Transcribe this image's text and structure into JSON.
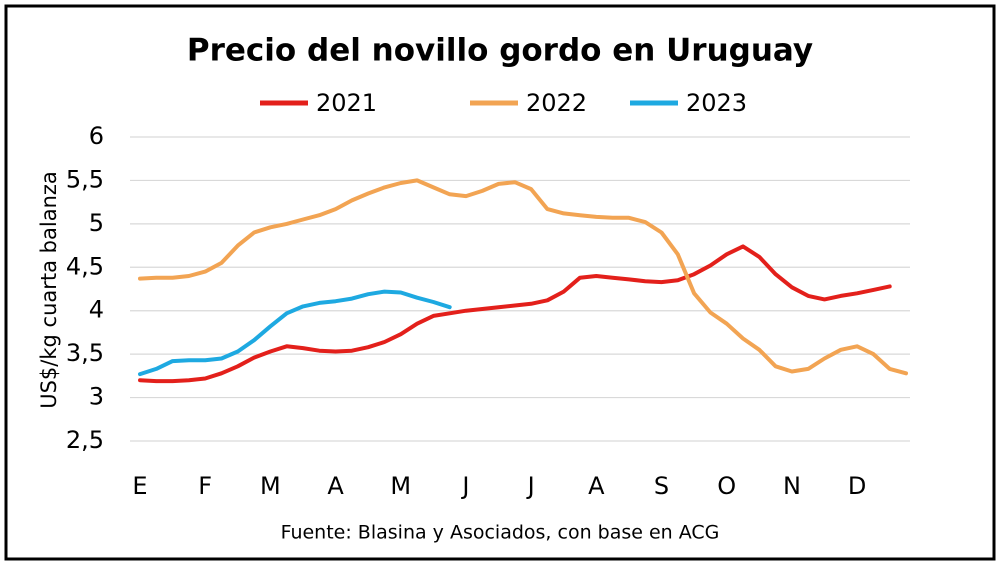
{
  "chart_data": {
    "type": "line",
    "title": "Precio del novillo gordo en Uruguay",
    "y_label": "US$/kg cuarta balanza",
    "source": "Fuente: Blasina y Asociados, con base en ACG",
    "categories": [
      "E",
      null,
      null,
      null,
      "F",
      null,
      null,
      null,
      "M",
      null,
      null,
      null,
      "A",
      null,
      null,
      null,
      "M",
      null,
      null,
      null,
      "J",
      null,
      null,
      null,
      "J",
      null,
      null,
      null,
      "A",
      null,
      null,
      null,
      "S",
      null,
      null,
      null,
      "O",
      null,
      null,
      null,
      "N",
      null,
      null,
      null,
      "D",
      null,
      null,
      null
    ],
    "ylim": [
      2.5,
      6
    ],
    "yticks": [
      {
        "value": 2.5,
        "label": "2,5"
      },
      3,
      {
        "value": 3.5,
        "label": "3,5"
      },
      4,
      {
        "value": 4.5,
        "label": "4,5"
      },
      5,
      {
        "value": 5.5,
        "label": "5,5"
      },
      6
    ],
    "grid": true,
    "series": [
      {
        "name": "2021",
        "color": "#e3201b",
        "values": [
          3.2,
          3.19,
          3.19,
          3.2,
          3.22,
          3.28,
          3.36,
          3.46,
          3.53,
          3.59,
          3.57,
          3.54,
          3.53,
          3.54,
          3.58,
          3.64,
          3.73,
          3.85,
          3.94,
          3.97,
          4.0,
          4.02,
          4.04,
          4.06,
          4.08,
          4.12,
          4.22,
          4.38,
          4.4,
          4.38,
          4.36,
          4.34,
          4.33,
          4.35,
          4.42,
          4.52,
          4.65,
          4.74,
          4.62,
          4.42,
          4.27,
          4.17,
          4.13,
          4.17,
          4.2,
          4.24,
          4.28,
          null
        ]
      },
      {
        "name": "2022",
        "color": "#f2a453",
        "values": [
          4.37,
          4.38,
          4.38,
          4.4,
          4.45,
          4.55,
          4.75,
          4.9,
          4.96,
          5.0,
          5.05,
          5.1,
          5.17,
          5.27,
          5.35,
          5.42,
          5.47,
          5.5,
          5.42,
          5.34,
          5.32,
          5.38,
          5.46,
          5.48,
          5.4,
          5.17,
          5.12,
          5.1,
          5.08,
          5.07,
          5.07,
          5.02,
          4.9,
          4.65,
          4.2,
          3.98,
          3.85,
          3.68,
          3.55,
          3.36,
          3.3,
          3.33,
          3.45,
          3.55,
          3.59,
          3.5,
          3.33,
          3.28
        ]
      },
      {
        "name": "2023",
        "color": "#1ea9e1",
        "values": [
          3.27,
          3.33,
          3.42,
          3.43,
          3.43,
          3.45,
          3.53,
          3.66,
          3.82,
          3.97,
          4.05,
          4.09,
          4.11,
          4.14,
          4.19,
          4.22,
          4.21,
          4.15,
          4.1,
          4.04,
          null,
          null,
          null,
          null,
          null,
          null,
          null,
          null,
          null,
          null,
          null,
          null,
          null,
          null,
          null,
          null,
          null,
          null,
          null,
          null,
          null,
          null,
          null,
          null,
          null,
          null,
          null,
          null
        ]
      }
    ]
  }
}
